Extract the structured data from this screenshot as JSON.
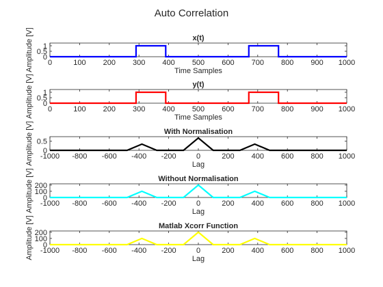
{
  "figure": {
    "title": "Auto Correlation"
  },
  "chart_data": [
    {
      "type": "line",
      "title": "x(t)",
      "xlabel": "Time Samples",
      "ylabel": "Amplitude [V]",
      "xlim": [
        0,
        1000
      ],
      "ylim": [
        0,
        1.25
      ],
      "xticks": [
        0,
        100,
        200,
        300,
        400,
        500,
        600,
        700,
        800,
        900,
        1000
      ],
      "yticks": [
        0,
        0.5,
        1
      ],
      "ytick_labels": [
        "0",
        "0.5",
        "1"
      ],
      "grid": false,
      "series": [
        {
          "color": "#0000ff",
          "x": [
            0,
            290,
            290,
            390,
            390,
            670,
            670,
            770,
            770,
            1000
          ],
          "y": [
            0,
            0,
            1,
            1,
            0,
            0,
            1,
            1,
            0,
            0
          ]
        }
      ]
    },
    {
      "type": "line",
      "title": "y(t)",
      "xlabel": "Time Samples",
      "ylabel": "Amplitude [V]",
      "xlim": [
        0,
        1000
      ],
      "ylim": [
        0,
        1.25
      ],
      "xticks": [
        0,
        100,
        200,
        300,
        400,
        500,
        600,
        700,
        800,
        900,
        1000
      ],
      "yticks": [
        0,
        0.5,
        1
      ],
      "ytick_labels": [
        "0",
        "0.5",
        "1"
      ],
      "grid": false,
      "series": [
        {
          "color": "#ff0000",
          "x": [
            0,
            290,
            290,
            390,
            390,
            670,
            670,
            770,
            770,
            1000
          ],
          "y": [
            0,
            0,
            1,
            1,
            0,
            0,
            1,
            1,
            0,
            0
          ]
        }
      ]
    },
    {
      "type": "line",
      "title": "With Normalisation",
      "xlabel": "Lag",
      "ylabel": "Amplitude [V]",
      "xlim": [
        -1000,
        1000
      ],
      "ylim": [
        0,
        0.75
      ],
      "xticks": [
        -1000,
        -800,
        -600,
        -400,
        -200,
        0,
        200,
        400,
        600,
        800,
        1000
      ],
      "yticks": [
        0,
        0.5
      ],
      "ytick_labels": [
        "0",
        "0.5"
      ],
      "grid": false,
      "series": [
        {
          "color": "#000000",
          "x": [
            -1000,
            -480,
            -380,
            -280,
            -100,
            0,
            100,
            280,
            380,
            480,
            1000
          ],
          "y": [
            0,
            0,
            0.34,
            0,
            0,
            0.68,
            0,
            0,
            0.34,
            0,
            0
          ]
        }
      ]
    },
    {
      "type": "line",
      "title": "Without Normalisation",
      "xlabel": "Lag",
      "ylabel": "Amplitude [V]",
      "xlim": [
        -1000,
        1000
      ],
      "ylim": [
        0,
        220
      ],
      "xticks": [
        -1000,
        -800,
        -600,
        -400,
        -200,
        0,
        200,
        400,
        600,
        800,
        1000
      ],
      "yticks": [
        0,
        100,
        200
      ],
      "ytick_labels": [
        "0",
        "100",
        "200"
      ],
      "grid": false,
      "series": [
        {
          "color": "#00ffff",
          "x": [
            -1000,
            -480,
            -380,
            -280,
            -100,
            0,
            100,
            280,
            380,
            480,
            1000
          ],
          "y": [
            0,
            0,
            100,
            0,
            0,
            200,
            0,
            0,
            100,
            0,
            0
          ]
        }
      ]
    },
    {
      "type": "line",
      "title": "Matlab Xcorr Function",
      "xlabel": "Lag",
      "ylabel": "Amplitude [V]",
      "xlim": [
        -1000,
        1000
      ],
      "ylim": [
        0,
        220
      ],
      "xticks": [
        -1000,
        -800,
        -600,
        -400,
        -200,
        0,
        200,
        400,
        600,
        800,
        1000
      ],
      "yticks": [
        0,
        100,
        200
      ],
      "ytick_labels": [
        "0",
        "100",
        "200"
      ],
      "grid": false,
      "series": [
        {
          "color": "#ffff00",
          "x": [
            -1000,
            -480,
            -380,
            -280,
            -100,
            0,
            100,
            280,
            380,
            480,
            1000
          ],
          "y": [
            0,
            0,
            100,
            0,
            0,
            200,
            0,
            0,
            100,
            0,
            0
          ]
        }
      ]
    }
  ]
}
